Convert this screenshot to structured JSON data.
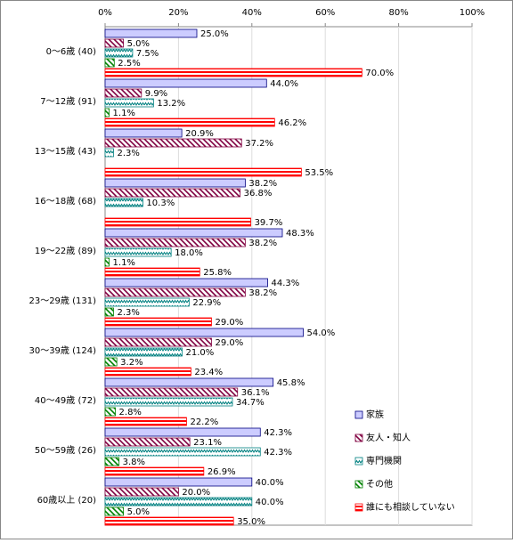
{
  "chart_data": {
    "type": "bar",
    "orientation": "horizontal",
    "categories": [
      "0～6歳 (40)",
      "7～12歳 (91)",
      "13～15歳 (43)",
      "16～18歳 (68)",
      "19～22歳 (89)",
      "23～29歳 (131)",
      "30～39歳 (124)",
      "40～49歳 (72)",
      "50～59歳 (26)",
      "60歳以上 (20)"
    ],
    "series": [
      {
        "name": "家族",
        "color": "#ccccff",
        "values": [
          25,
          44,
          20.9,
          38.2,
          48.3,
          44.3,
          54,
          45.8,
          42.3,
          40
        ],
        "value_labels": [
          "25.0%",
          "44.0%",
          "20.9%",
          "38.2%",
          "48.3%",
          "44.3%",
          "54.0%",
          "45.8%",
          "42.3%",
          "40.0%"
        ]
      },
      {
        "name": "友人・知人",
        "color": "#800040",
        "values": [
          5,
          9.9,
          37.2,
          36.8,
          38.2,
          38.2,
          29,
          36.1,
          23.1,
          20
        ],
        "value_labels": [
          "5.0%",
          "9.9%",
          "37.2%",
          "36.8%",
          "38.2%",
          "38.2%",
          "29.0%",
          "36.1%",
          "23.1%",
          "20.0%"
        ]
      },
      {
        "name": "専門機関",
        "color": "#008080",
        "values": [
          7.5,
          13.2,
          2.3,
          10.3,
          18,
          22.9,
          21,
          34.7,
          42.3,
          40
        ],
        "value_labels": [
          "7.5%",
          "13.2%",
          "2.3%",
          "10.3%",
          "18.0%",
          "22.9%",
          "21.0%",
          "34.7%",
          "42.3%",
          "40.0%"
        ]
      },
      {
        "name": "その他",
        "color": "#008000",
        "values": [
          2.5,
          1.1,
          null,
          null,
          1.1,
          2.3,
          3.2,
          2.8,
          3.8,
          5
        ],
        "value_labels": [
          "2.5%",
          "1.1%",
          null,
          null,
          "1.1%",
          "2.3%",
          "3.2%",
          "2.8%",
          "3.8%",
          "5.0%"
        ]
      },
      {
        "name": "誰にも相談していない",
        "color": "#ff0000",
        "values": [
          70,
          46.2,
          53.5,
          39.7,
          25.8,
          29,
          23.4,
          22.2,
          26.9,
          35
        ],
        "value_labels": [
          "70.0%",
          "46.2%",
          "53.5%",
          "39.7%",
          "25.8%",
          "29.0%",
          "23.4%",
          "22.2%",
          "26.9%",
          "35.0%"
        ]
      }
    ],
    "xlim": [
      0,
      100
    ],
    "xticks": [
      {
        "value": 0,
        "label": "0%"
      },
      {
        "value": 20,
        "label": "20%"
      },
      {
        "value": 40,
        "label": "40%"
      },
      {
        "value": 60,
        "label": "60%"
      },
      {
        "value": 80,
        "label": "80%"
      },
      {
        "value": 100,
        "label": "100%"
      }
    ],
    "grid": true,
    "legend": "lower right"
  }
}
